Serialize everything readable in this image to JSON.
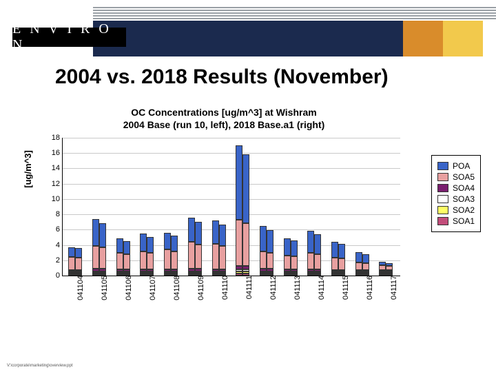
{
  "logo_text": "E N V I R O N",
  "title": "2004 vs. 2018 Results (November)",
  "chart": {
    "type": "stacked-bar-grouped",
    "title_line1": "OC Concentrations  [ug/m^3] at Wishram",
    "title_line2": "2004 Base (run 10, left), 2018 Base.a1 (right)",
    "ylabel": "[ug/m^3]",
    "ylim_max": 18,
    "ytick_step": 2,
    "grid_color": "#c9c9c9",
    "categories": [
      "041104",
      "041105",
      "041106",
      "041107",
      "041108",
      "041109",
      "041110",
      "041111",
      "041112",
      "041113",
      "041114",
      "041115",
      "041116",
      "041117"
    ],
    "series_order": [
      "SOA1",
      "SOA2",
      "SOA3",
      "SOA4",
      "SOA5",
      "POA"
    ],
    "colors": {
      "POA": "#3964c8",
      "SOA5": "#e8a0a0",
      "SOA4": "#7a1f6f",
      "SOA3": "#ffffff",
      "SOA2": "#ffff66",
      "SOA1": "#c24d7a"
    },
    "legend_order": [
      "POA",
      "SOA5",
      "SOA4",
      "SOA3",
      "SOA2",
      "SOA1"
    ],
    "data": {
      "041104": {
        "left": {
          "SOA1": 0.2,
          "SOA2": 0.1,
          "SOA3": 0.1,
          "SOA4": 0.2,
          "SOA5": 1.7,
          "POA": 1.2
        },
        "right": {
          "SOA1": 0.2,
          "SOA2": 0.1,
          "SOA3": 0.1,
          "SOA4": 0.2,
          "SOA5": 1.6,
          "POA": 1.2
        }
      },
      "041105": {
        "left": {
          "SOA1": 0.2,
          "SOA2": 0.1,
          "SOA3": 0.2,
          "SOA4": 0.3,
          "SOA5": 3.0,
          "POA": 3.5
        },
        "right": {
          "SOA1": 0.2,
          "SOA2": 0.1,
          "SOA3": 0.2,
          "SOA4": 0.3,
          "SOA5": 2.8,
          "POA": 3.2
        }
      },
      "041106": {
        "left": {
          "SOA1": 0.2,
          "SOA2": 0.1,
          "SOA3": 0.2,
          "SOA4": 0.2,
          "SOA5": 2.2,
          "POA": 1.9
        },
        "right": {
          "SOA1": 0.2,
          "SOA2": 0.1,
          "SOA3": 0.2,
          "SOA4": 0.2,
          "SOA5": 2.0,
          "POA": 1.7
        }
      },
      "041107": {
        "left": {
          "SOA1": 0.2,
          "SOA2": 0.1,
          "SOA3": 0.2,
          "SOA4": 0.2,
          "SOA5": 2.4,
          "POA": 2.3
        },
        "right": {
          "SOA1": 0.2,
          "SOA2": 0.1,
          "SOA3": 0.2,
          "SOA4": 0.2,
          "SOA5": 2.2,
          "POA": 2.1
        }
      },
      "041108": {
        "left": {
          "SOA1": 0.2,
          "SOA2": 0.1,
          "SOA3": 0.2,
          "SOA4": 0.2,
          "SOA5": 2.6,
          "POA": 2.2
        },
        "right": {
          "SOA1": 0.2,
          "SOA2": 0.1,
          "SOA3": 0.2,
          "SOA4": 0.2,
          "SOA5": 2.4,
          "POA": 2.0
        }
      },
      "041109": {
        "left": {
          "SOA1": 0.2,
          "SOA2": 0.1,
          "SOA3": 0.2,
          "SOA4": 0.3,
          "SOA5": 3.5,
          "POA": 3.2
        },
        "right": {
          "SOA1": 0.2,
          "SOA2": 0.1,
          "SOA3": 0.2,
          "SOA4": 0.3,
          "SOA5": 3.2,
          "POA": 2.9
        }
      },
      "041110": {
        "left": {
          "SOA1": 0.2,
          "SOA2": 0.1,
          "SOA3": 0.2,
          "SOA4": 0.2,
          "SOA5": 3.4,
          "POA": 3.0
        },
        "right": {
          "SOA1": 0.2,
          "SOA2": 0.1,
          "SOA3": 0.2,
          "SOA4": 0.2,
          "SOA5": 3.1,
          "POA": 2.8
        }
      },
      "041111": {
        "left": {
          "SOA1": 0.3,
          "SOA2": 0.2,
          "SOA3": 0.3,
          "SOA4": 0.5,
          "SOA5": 6.0,
          "POA": 9.7
        },
        "right": {
          "SOA1": 0.3,
          "SOA2": 0.2,
          "SOA3": 0.3,
          "SOA4": 0.5,
          "SOA5": 5.5,
          "POA": 9.0
        }
      },
      "041112": {
        "left": {
          "SOA1": 0.2,
          "SOA2": 0.1,
          "SOA3": 0.2,
          "SOA4": 0.3,
          "SOA5": 2.3,
          "POA": 3.3
        },
        "right": {
          "SOA1": 0.2,
          "SOA2": 0.1,
          "SOA3": 0.2,
          "SOA4": 0.3,
          "SOA5": 2.1,
          "POA": 3.0
        }
      },
      "041113": {
        "left": {
          "SOA1": 0.2,
          "SOA2": 0.1,
          "SOA3": 0.2,
          "SOA4": 0.2,
          "SOA5": 1.8,
          "POA": 2.3
        },
        "right": {
          "SOA1": 0.2,
          "SOA2": 0.1,
          "SOA3": 0.2,
          "SOA4": 0.2,
          "SOA5": 1.7,
          "POA": 2.1
        }
      },
      "041114": {
        "left": {
          "SOA1": 0.2,
          "SOA2": 0.1,
          "SOA3": 0.2,
          "SOA4": 0.2,
          "SOA5": 2.2,
          "POA": 2.9
        },
        "right": {
          "SOA1": 0.2,
          "SOA2": 0.1,
          "SOA3": 0.2,
          "SOA4": 0.2,
          "SOA5": 2.0,
          "POA": 2.6
        }
      },
      "041115": {
        "left": {
          "SOA1": 0.1,
          "SOA2": 0.1,
          "SOA3": 0.1,
          "SOA4": 0.2,
          "SOA5": 1.6,
          "POA": 2.1
        },
        "right": {
          "SOA1": 0.1,
          "SOA2": 0.1,
          "SOA3": 0.1,
          "SOA4": 0.2,
          "SOA5": 1.5,
          "POA": 1.9
        }
      },
      "041116": {
        "left": {
          "SOA1": 0.1,
          "SOA2": 0.1,
          "SOA3": 0.1,
          "SOA4": 0.1,
          "SOA5": 1.0,
          "POA": 1.3
        },
        "right": {
          "SOA1": 0.1,
          "SOA2": 0.1,
          "SOA3": 0.1,
          "SOA4": 0.1,
          "SOA5": 0.9,
          "POA": 1.2
        }
      },
      "041117": {
        "left": {
          "SOA1": 0.1,
          "SOA2": 0.1,
          "SOA3": 0.1,
          "SOA4": 0.1,
          "SOA5": 0.6,
          "POA": 0.5
        },
        "right": {
          "SOA1": 0.1,
          "SOA2": 0.1,
          "SOA3": 0.1,
          "SOA4": 0.1,
          "SOA5": 0.5,
          "POA": 0.4
        }
      }
    }
  },
  "footer": "V:\\corporate\\marketing\\overview.ppt"
}
